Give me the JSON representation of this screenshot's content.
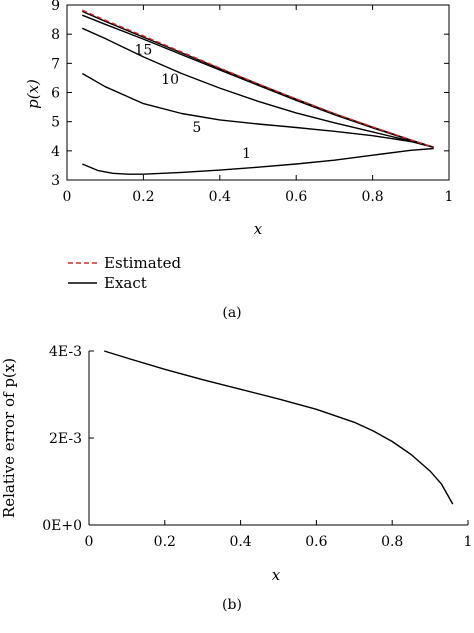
{
  "chart_data": [
    {
      "type": "line",
      "caption": "(a)",
      "xlabel": "x",
      "ylabel": "p(x)",
      "xlim": [
        0,
        1
      ],
      "ylim": [
        3,
        9
      ],
      "xticks": [
        0,
        0.2,
        0.4,
        0.6,
        0.8,
        1
      ],
      "xtick_labels": [
        "0",
        "0.2",
        "0.4",
        "0.6",
        "0.8",
        "1"
      ],
      "yticks": [
        3,
        4,
        5,
        6,
        7,
        8,
        9
      ],
      "ytick_labels": [
        "3",
        "4",
        "5",
        "6",
        "7",
        "8",
        "9"
      ],
      "legend": {
        "placement": "below",
        "entries": [
          {
            "label": "Estimated",
            "color": "#d62728",
            "dash": "dashed"
          },
          {
            "label": "Exact",
            "color": "#000000",
            "dash": "solid"
          }
        ]
      },
      "series": [
        {
          "name": "Estimated",
          "color": "#d62728",
          "dash": "dashed",
          "x": [
            0.04,
            0.1,
            0.2,
            0.3,
            0.4,
            0.5,
            0.6,
            0.7,
            0.8,
            0.9,
            0.96
          ],
          "y": [
            8.82,
            8.48,
            7.94,
            7.39,
            6.84,
            6.3,
            5.78,
            5.28,
            4.82,
            4.38,
            4.12
          ]
        },
        {
          "label": "15",
          "color": "#000000",
          "dash": "solid",
          "x": [
            0.04,
            0.1,
            0.2,
            0.3,
            0.4,
            0.5,
            0.6,
            0.7,
            0.8,
            0.9,
            0.96
          ],
          "y": [
            8.78,
            8.44,
            7.9,
            7.36,
            6.82,
            6.29,
            5.77,
            5.27,
            4.81,
            4.37,
            4.12
          ]
        },
        {
          "label": "10",
          "color": "#000000",
          "dash": "solid",
          "x": [
            0.04,
            0.1,
            0.2,
            0.3,
            0.4,
            0.5,
            0.6,
            0.7,
            0.8,
            0.9,
            0.96
          ],
          "y": [
            8.65,
            8.34,
            7.83,
            7.3,
            6.77,
            6.25,
            5.73,
            5.24,
            4.79,
            4.36,
            4.12
          ]
        },
        {
          "label": "5",
          "color": "#000000",
          "dash": "solid",
          "x": [
            0.04,
            0.1,
            0.2,
            0.3,
            0.4,
            0.5,
            0.6,
            0.7,
            0.8,
            0.9,
            0.96
          ],
          "y": [
            8.2,
            7.85,
            7.22,
            6.65,
            6.15,
            5.7,
            5.3,
            4.96,
            4.65,
            4.33,
            4.12
          ]
        },
        {
          "label": "1",
          "color": "#000000",
          "dash": "solid",
          "x": [
            0.04,
            0.1,
            0.2,
            0.3,
            0.4,
            0.5,
            0.6,
            0.7,
            0.8,
            0.9,
            0.96
          ],
          "y": [
            6.65,
            6.2,
            5.62,
            5.28,
            5.06,
            4.92,
            4.8,
            4.67,
            4.52,
            4.32,
            4.12
          ]
        },
        {
          "label": "",
          "color": "#000000",
          "dash": "solid",
          "x": [
            0.04,
            0.08,
            0.12,
            0.16,
            0.2,
            0.3,
            0.4,
            0.5,
            0.6,
            0.7,
            0.8,
            0.9,
            0.96
          ],
          "y": [
            3.55,
            3.33,
            3.23,
            3.2,
            3.2,
            3.26,
            3.34,
            3.44,
            3.55,
            3.68,
            3.85,
            4.02,
            4.08
          ]
        }
      ],
      "curve_labels": [
        {
          "text": "15",
          "x": 0.2,
          "y": 7.3
        },
        {
          "text": "10",
          "x": 0.27,
          "y": 6.3
        },
        {
          "text": "5",
          "x": 0.34,
          "y": 4.65
        },
        {
          "text": "1",
          "x": 0.47,
          "y": 3.75
        }
      ]
    },
    {
      "type": "line",
      "caption": "(b)",
      "xlabel": "x",
      "ylabel": "Relative error of p(x)",
      "xlim": [
        0,
        1
      ],
      "ylim": [
        0,
        0.004
      ],
      "xticks": [
        0,
        0.2,
        0.4,
        0.6,
        0.8,
        1
      ],
      "xtick_labels": [
        "0",
        "0.2",
        "0.4",
        "0.6",
        "0.8",
        "1"
      ],
      "yticks": [
        0,
        0.002,
        0.004
      ],
      "ytick_labels": [
        "0E+0",
        "2E-3",
        "4E-3"
      ],
      "series": [
        {
          "color": "#000000",
          "dash": "solid",
          "x": [
            0.04,
            0.1,
            0.2,
            0.3,
            0.4,
            0.5,
            0.6,
            0.7,
            0.75,
            0.8,
            0.85,
            0.9,
            0.93,
            0.96
          ],
          "y": [
            0.004,
            0.00384,
            0.00358,
            0.00334,
            0.00312,
            0.0029,
            0.00266,
            0.00236,
            0.00216,
            0.00192,
            0.00162,
            0.00124,
            0.00094,
            0.00048
          ]
        }
      ]
    }
  ]
}
